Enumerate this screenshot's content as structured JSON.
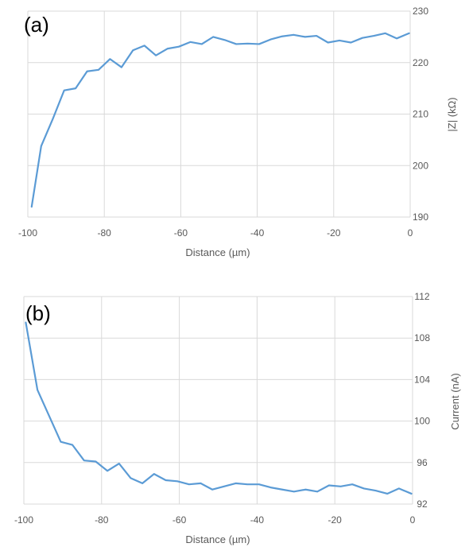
{
  "chart_data": [
    {
      "type": "line",
      "panel_label": "(a)",
      "title": "",
      "xlabel": "Distance (µm)",
      "ylabel": "|Z| (kΩ)",
      "xlim": [
        -100,
        0
      ],
      "ylim": [
        190,
        230
      ],
      "x_ticks": [
        -100,
        -80,
        -60,
        -40,
        -20,
        0
      ],
      "y_ticks": [
        190,
        200,
        210,
        220,
        230
      ],
      "y_axis_side": "right",
      "grid": "horizontal",
      "line_color": "#5b9bd5",
      "series": [
        {
          "x": [
            -99,
            -96.5,
            -93.5,
            -90.5,
            -87.5,
            -84.5,
            -81.5,
            -78.5,
            -75.5,
            -72.5,
            -69.5,
            -66.5,
            -63.5,
            -60.5,
            -57.5,
            -54.5,
            -51.5,
            -48.5,
            -45.5,
            -42.5,
            -39.5,
            -36.5,
            -33.5,
            -30.5,
            -27.5,
            -24.5,
            -21.5,
            -18.5,
            -15.5,
            -12.5,
            -9.5,
            -6.5,
            -3.5,
            -0.3
          ],
          "y": [
            192.0,
            203.8,
            209.0,
            214.6,
            215.0,
            218.3,
            218.6,
            220.7,
            219.1,
            222.4,
            223.3,
            221.4,
            222.7,
            223.1,
            224.0,
            223.6,
            225.0,
            224.4,
            223.6,
            223.7,
            223.6,
            224.5,
            225.1,
            225.4,
            225.0,
            225.2,
            223.9,
            224.3,
            223.9,
            224.8,
            225.2,
            225.7,
            224.7,
            225.7
          ]
        }
      ]
    },
    {
      "type": "line",
      "panel_label": "(b)",
      "title": "",
      "xlabel": "Distance (µm)",
      "ylabel": "Current (nA)",
      "xlim": [
        -100,
        0
      ],
      "ylim": [
        92,
        112
      ],
      "x_ticks": [
        -100,
        -80,
        -60,
        -40,
        -20,
        0
      ],
      "y_ticks": [
        92,
        96,
        100,
        104,
        108,
        112
      ],
      "y_axis_side": "right",
      "grid": "horizontal",
      "line_color": "#5b9bd5",
      "series": [
        {
          "x": [
            -99.5,
            -96.5,
            -93.5,
            -90.5,
            -87.5,
            -84.5,
            -81.5,
            -78.5,
            -75.5,
            -72.5,
            -69.5,
            -66.5,
            -63.5,
            -60.5,
            -57.5,
            -54.5,
            -51.5,
            -48.5,
            -45.5,
            -42.5,
            -39.5,
            -36.5,
            -33.5,
            -30.5,
            -27.5,
            -24.5,
            -21.5,
            -18.5,
            -15.5,
            -12.5,
            -9.5,
            -6.5,
            -3.5,
            -0.3
          ],
          "y": [
            109.5,
            103.0,
            100.5,
            98.0,
            97.7,
            96.2,
            96.1,
            95.2,
            95.9,
            94.5,
            94.0,
            94.9,
            94.3,
            94.2,
            93.9,
            94.0,
            93.4,
            93.7,
            94.0,
            93.9,
            93.9,
            93.6,
            93.4,
            93.2,
            93.4,
            93.2,
            93.8,
            93.7,
            93.9,
            93.5,
            93.3,
            93.0,
            93.5,
            93.0
          ]
        }
      ]
    }
  ]
}
